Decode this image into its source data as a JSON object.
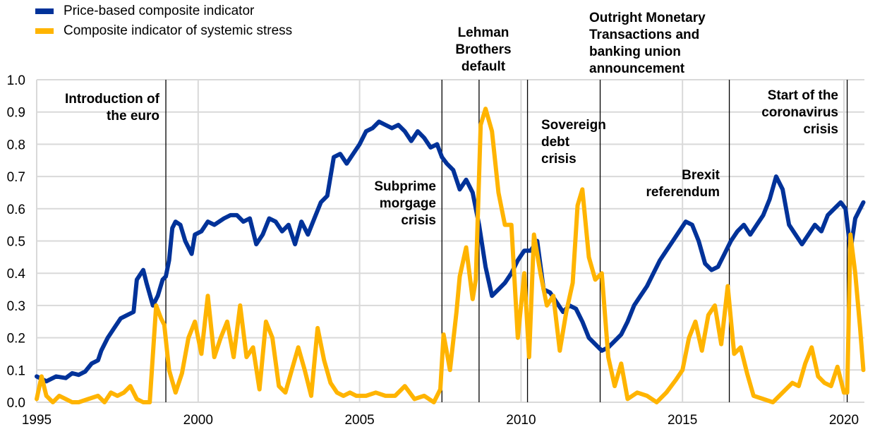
{
  "chart_data": {
    "type": "line",
    "title": "",
    "xlabel": "",
    "ylabel": "",
    "xlim": [
      1995,
      2020.6
    ],
    "ylim": [
      0,
      1.0
    ],
    "grid": true,
    "legend_position": "top-left",
    "x_ticks": [
      "1995",
      "2000",
      "2005",
      "2010",
      "2015",
      "2020"
    ],
    "x_tick_values": [
      1995,
      2000,
      2005,
      2010,
      2015,
      2020
    ],
    "y_ticks": [
      "0.0",
      "0.1",
      "0.2",
      "0.3",
      "0.4",
      "0.5",
      "0.6",
      "0.7",
      "0.8",
      "0.9",
      "1.0"
    ],
    "y_tick_values": [
      0,
      0.1,
      0.2,
      0.3,
      0.4,
      0.5,
      0.6,
      0.7,
      0.8,
      0.9,
      1.0
    ],
    "series": [
      {
        "name": "Price-based composite indicator",
        "color": "#003299",
        "x": [
          1995.0,
          1995.3,
          1995.6,
          1995.9,
          1996.1,
          1996.3,
          1996.5,
          1996.7,
          1996.9,
          1997.0,
          1997.2,
          1997.4,
          1997.6,
          1997.8,
          1998.0,
          1998.1,
          1998.3,
          1998.4,
          1998.6,
          1998.75,
          1998.9,
          1999.0,
          1999.1,
          1999.2,
          1999.3,
          1999.45,
          1999.6,
          1999.8,
          1999.9,
          2000.1,
          2000.3,
          2000.5,
          2000.8,
          2001.0,
          2001.2,
          2001.4,
          2001.6,
          2001.8,
          2002.0,
          2002.2,
          2002.4,
          2002.6,
          2002.8,
          2003.0,
          2003.2,
          2003.4,
          2003.6,
          2003.8,
          2004.0,
          2004.2,
          2004.4,
          2004.6,
          2004.8,
          2005.0,
          2005.2,
          2005.4,
          2005.6,
          2005.8,
          2006.0,
          2006.2,
          2006.4,
          2006.6,
          2006.8,
          2007.0,
          2007.2,
          2007.4,
          2007.55,
          2007.7,
          2007.9,
          2008.1,
          2008.3,
          2008.5,
          2008.7,
          2008.9,
          2009.1,
          2009.3,
          2009.5,
          2009.7,
          2009.9,
          2010.1,
          2010.3,
          2010.5,
          2010.7,
          2010.9,
          2011.1,
          2011.3,
          2011.5,
          2011.7,
          2011.9,
          2012.1,
          2012.3,
          2012.5,
          2012.7,
          2012.9,
          2013.1,
          2013.3,
          2013.5,
          2013.7,
          2013.9,
          2014.1,
          2014.3,
          2014.5,
          2014.7,
          2014.9,
          2015.1,
          2015.3,
          2015.5,
          2015.7,
          2015.9,
          2016.1,
          2016.3,
          2016.5,
          2016.7,
          2016.9,
          2017.1,
          2017.3,
          2017.5,
          2017.7,
          2017.9,
          2018.1,
          2018.3,
          2018.5,
          2018.7,
          2018.9,
          2019.1,
          2019.3,
          2019.5,
          2019.7,
          2019.9,
          2020.05,
          2020.2,
          2020.35,
          2020.5,
          2020.6
        ],
        "values": [
          0.08,
          0.065,
          0.08,
          0.075,
          0.09,
          0.085,
          0.095,
          0.12,
          0.13,
          0.16,
          0.2,
          0.23,
          0.26,
          0.27,
          0.28,
          0.38,
          0.41,
          0.37,
          0.3,
          0.33,
          0.38,
          0.39,
          0.44,
          0.54,
          0.56,
          0.55,
          0.5,
          0.46,
          0.52,
          0.53,
          0.56,
          0.55,
          0.57,
          0.58,
          0.58,
          0.56,
          0.57,
          0.49,
          0.52,
          0.57,
          0.56,
          0.53,
          0.55,
          0.49,
          0.56,
          0.52,
          0.57,
          0.62,
          0.64,
          0.76,
          0.77,
          0.74,
          0.77,
          0.8,
          0.84,
          0.85,
          0.87,
          0.86,
          0.85,
          0.86,
          0.84,
          0.81,
          0.84,
          0.82,
          0.79,
          0.8,
          0.76,
          0.74,
          0.72,
          0.66,
          0.69,
          0.65,
          0.55,
          0.42,
          0.33,
          0.35,
          0.37,
          0.4,
          0.44,
          0.47,
          0.47,
          0.5,
          0.35,
          0.34,
          0.31,
          0.28,
          0.3,
          0.29,
          0.25,
          0.2,
          0.18,
          0.16,
          0.17,
          0.19,
          0.21,
          0.25,
          0.3,
          0.33,
          0.36,
          0.4,
          0.44,
          0.47,
          0.5,
          0.53,
          0.56,
          0.55,
          0.5,
          0.43,
          0.41,
          0.42,
          0.46,
          0.5,
          0.53,
          0.55,
          0.52,
          0.55,
          0.58,
          0.63,
          0.7,
          0.66,
          0.55,
          0.52,
          0.49,
          0.52,
          0.55,
          0.53,
          0.58,
          0.6,
          0.62,
          0.6,
          0.47,
          0.57,
          0.6,
          0.62
        ],
        "values_note": "approximate reading"
      },
      {
        "name": "Composite indicator of systemic stress",
        "color": "#FFB400",
        "x": [
          1995.0,
          1995.15,
          1995.3,
          1995.5,
          1995.7,
          1995.9,
          1996.1,
          1996.3,
          1996.6,
          1996.9,
          1997.1,
          1997.3,
          1997.5,
          1997.7,
          1997.9,
          1998.1,
          1998.3,
          1998.5,
          1998.7,
          1998.85,
          1998.95,
          1999.1,
          1999.3,
          1999.5,
          1999.7,
          1999.9,
          2000.1,
          2000.3,
          2000.5,
          2000.7,
          2000.9,
          2001.1,
          2001.3,
          2001.5,
          2001.7,
          2001.9,
          2002.1,
          2002.3,
          2002.5,
          2002.7,
          2002.9,
          2003.1,
          2003.3,
          2003.5,
          2003.7,
          2003.9,
          2004.1,
          2004.3,
          2004.5,
          2004.7,
          2004.9,
          2005.2,
          2005.5,
          2005.8,
          2006.1,
          2006.4,
          2006.7,
          2007.0,
          2007.3,
          2007.5,
          2007.6,
          2007.8,
          2008.0,
          2008.1,
          2008.3,
          2008.5,
          2008.6,
          2008.75,
          2008.9,
          2009.1,
          2009.3,
          2009.5,
          2009.7,
          2009.9,
          2010.1,
          2010.25,
          2010.4,
          2010.6,
          2010.8,
          2011.0,
          2011.2,
          2011.4,
          2011.6,
          2011.75,
          2011.9,
          2012.1,
          2012.3,
          2012.5,
          2012.7,
          2012.9,
          2013.1,
          2013.3,
          2013.6,
          2013.9,
          2014.2,
          2014.5,
          2014.8,
          2015.0,
          2015.2,
          2015.4,
          2015.6,
          2015.8,
          2016.0,
          2016.2,
          2016.4,
          2016.6,
          2016.8,
          2017.0,
          2017.2,
          2017.5,
          2017.8,
          2018.1,
          2018.4,
          2018.6,
          2018.8,
          2019.0,
          2019.2,
          2019.4,
          2019.6,
          2019.8,
          2020.0,
          2020.1,
          2020.2,
          2020.35,
          2020.5,
          2020.6
        ],
        "values": [
          0.01,
          0.08,
          0.02,
          0.0,
          0.02,
          0.01,
          0.0,
          0.0,
          0.01,
          0.02,
          0.0,
          0.03,
          0.02,
          0.03,
          0.05,
          0.01,
          0.0,
          0.0,
          0.3,
          0.26,
          0.24,
          0.1,
          0.03,
          0.09,
          0.2,
          0.25,
          0.15,
          0.33,
          0.14,
          0.2,
          0.25,
          0.14,
          0.3,
          0.14,
          0.17,
          0.04,
          0.25,
          0.2,
          0.05,
          0.03,
          0.1,
          0.17,
          0.1,
          0.02,
          0.23,
          0.13,
          0.06,
          0.03,
          0.02,
          0.03,
          0.02,
          0.02,
          0.03,
          0.02,
          0.02,
          0.05,
          0.01,
          0.02,
          0.0,
          0.04,
          0.21,
          0.1,
          0.28,
          0.39,
          0.48,
          0.32,
          0.38,
          0.86,
          0.91,
          0.84,
          0.65,
          0.55,
          0.55,
          0.2,
          0.4,
          0.14,
          0.52,
          0.4,
          0.3,
          0.33,
          0.16,
          0.28,
          0.37,
          0.61,
          0.66,
          0.45,
          0.38,
          0.4,
          0.14,
          0.05,
          0.12,
          0.01,
          0.03,
          0.02,
          0.0,
          0.03,
          0.07,
          0.1,
          0.2,
          0.25,
          0.16,
          0.27,
          0.3,
          0.18,
          0.36,
          0.15,
          0.17,
          0.09,
          0.02,
          0.01,
          0.0,
          0.03,
          0.06,
          0.05,
          0.12,
          0.17,
          0.08,
          0.06,
          0.05,
          0.11,
          0.03,
          0.03,
          0.52,
          0.4,
          0.23,
          0.1
        ],
        "values_note": "approximate reading"
      }
    ],
    "event_lines": [
      {
        "x": 1999.0,
        "label": "Introduction of the euro"
      },
      {
        "x": 2007.55,
        "label": "Subprime morgage crisis"
      },
      {
        "x": 2008.7,
        "label": "Lehman Brothers default"
      },
      {
        "x": 2010.2,
        "label": "Sovereign debt crisis"
      },
      {
        "x": 2012.45,
        "label": "Outright Monetary Transactions and banking union announcement"
      },
      {
        "x": 2016.45,
        "label": "Brexit referendum"
      },
      {
        "x": 2020.1,
        "label": "Start of the coronavirus crisis"
      }
    ]
  },
  "legend": {
    "items": [
      {
        "label": "Price-based composite indicator",
        "color": "#003299"
      },
      {
        "label": "Composite indicator of systemic stress",
        "color": "#FFB400"
      }
    ]
  },
  "annotations": {
    "euro": [
      "Introduction of",
      "the euro"
    ],
    "subprime": [
      "Subprime",
      "morgage",
      "crisis"
    ],
    "lehman": [
      "Lehman",
      "Brothers",
      "default"
    ],
    "sovereign": [
      "Sovereign",
      "debt",
      "crisis"
    ],
    "omt": [
      "Outright Monetary",
      "Transactions and",
      "banking union",
      "announcement"
    ],
    "brexit": [
      "Brexit",
      "referendum"
    ],
    "covid": [
      "Start of the",
      "coronavirus",
      "crisis"
    ]
  }
}
